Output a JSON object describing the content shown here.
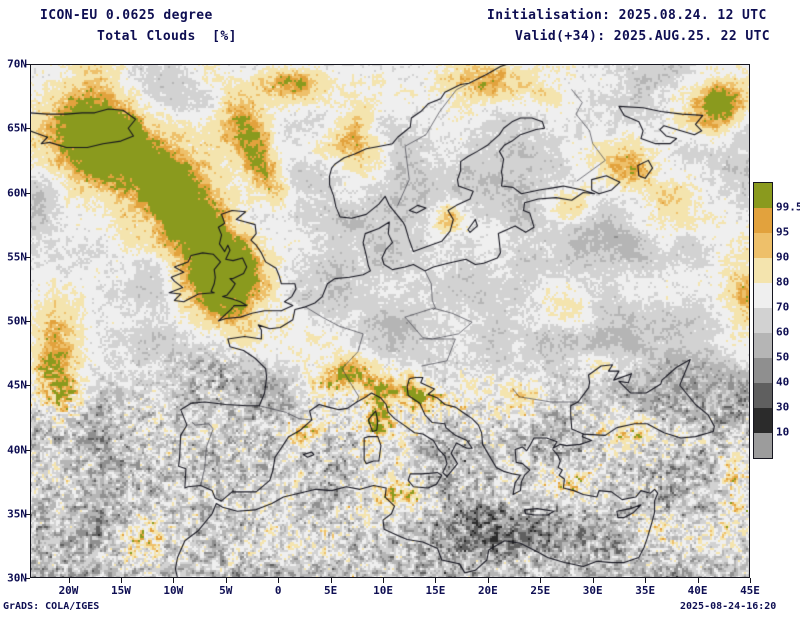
{
  "header": {
    "model": "ICON-EU 0.0625 degree",
    "variable": "Total Clouds  [%]",
    "initialisation": "Initialisation: 2025.08.24. 12 UTC",
    "valid": "Valid(+34): 2025.AUG.25. 22 UTC"
  },
  "footer": {
    "credit": "GrADS: COLA/IGES",
    "generated": "2025-08-24-16:20"
  },
  "colors": {
    "ink": "#0e0e52",
    "frame": "#15151f",
    "coast": "#15151f",
    "border": "#3a3a44",
    "background": "#ffffff"
  },
  "chart_data": {
    "type": "heatmap",
    "title": "Total Clouds [%]",
    "model": "ICON-EU 0.0625 degree",
    "init_time": "2025.08.24. 12 UTC",
    "valid_time": "2025.AUG.25. 22 UTC",
    "lead_hours": 34,
    "unit": "%",
    "x_axis": {
      "label": "longitude",
      "ticks": [
        "20W",
        "15W",
        "10W",
        "5W",
        "0",
        "5E",
        "10E",
        "15E",
        "20E",
        "25E",
        "30E",
        "35E",
        "40E",
        "45E"
      ]
    },
    "y_axis": {
      "label": "latitude",
      "ticks": [
        "70N",
        "65N",
        "60N",
        "55N",
        "50N",
        "45N",
        "40N",
        "35N",
        "30N"
      ]
    },
    "colorbar": {
      "position": "right",
      "labels": [
        "99.5",
        "95",
        "90",
        "80",
        "70",
        "60",
        "50",
        "40",
        "30",
        "10"
      ],
      "colors": [
        "#8a9a1e",
        "#e2a23d",
        "#eec06a",
        "#f4e4ae",
        "#efefef",
        "#d2d2d2",
        "#b5b5b5",
        "#8f8f8f",
        "#5f5f5f",
        "#2b2b2b",
        "#9c9c9c"
      ]
    }
  }
}
